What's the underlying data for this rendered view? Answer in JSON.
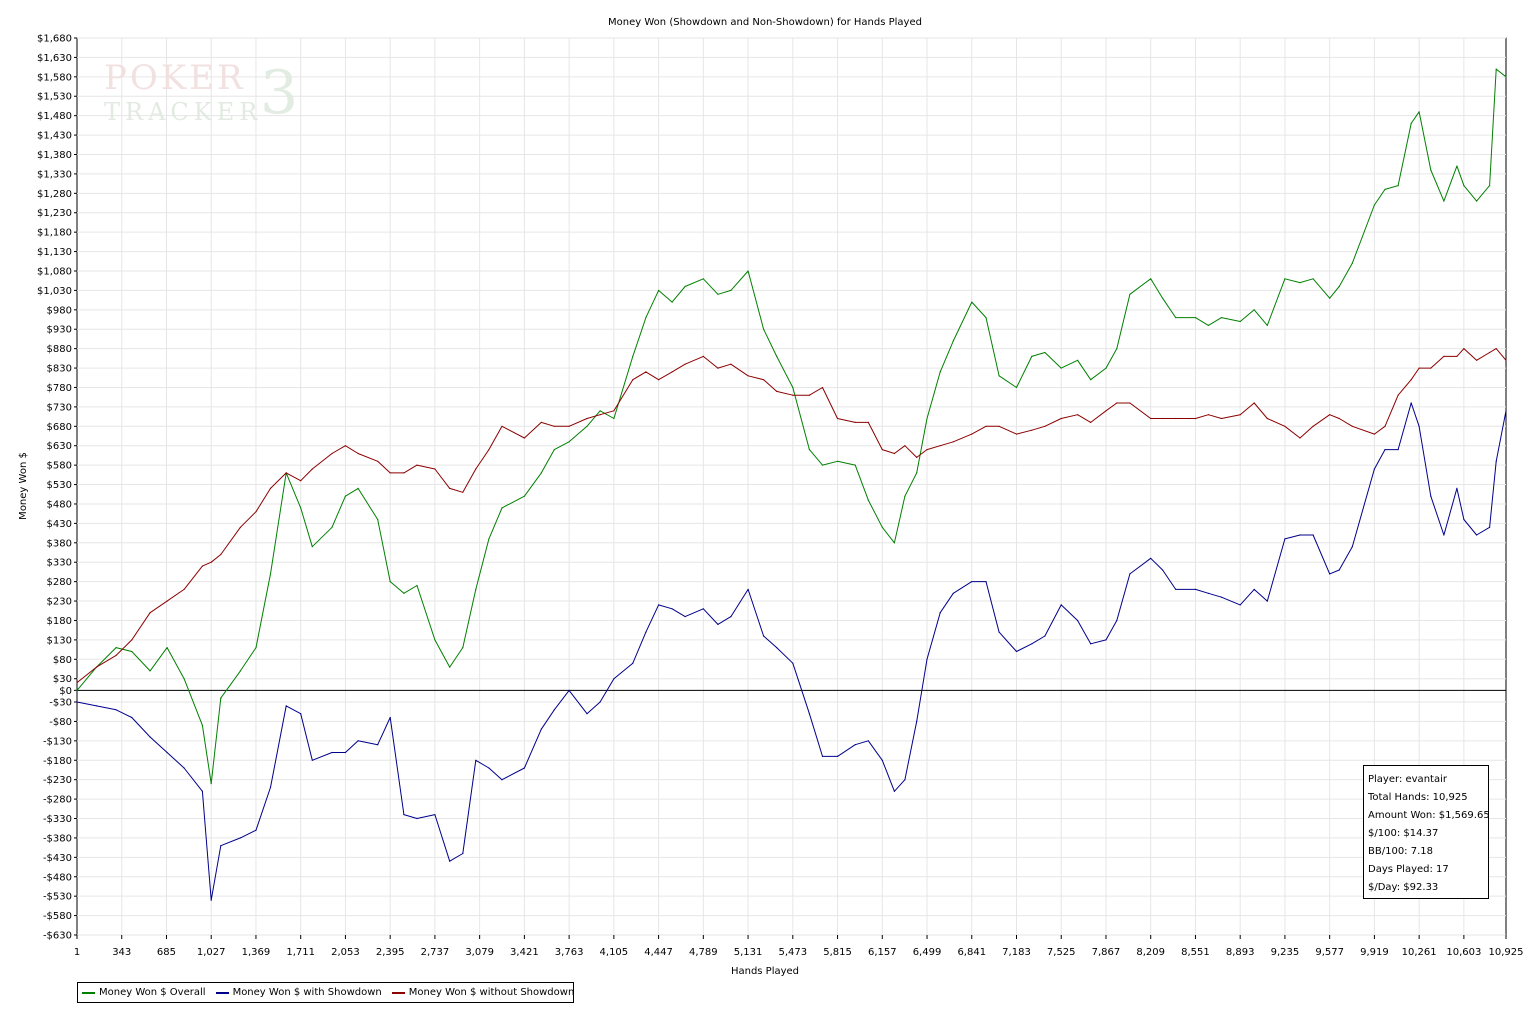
{
  "chart_data": {
    "type": "line",
    "title": "Money Won (Showdown and Non-Showdown) for Hands Played",
    "xlabel": "Hands Played",
    "ylabel": "Money Won $",
    "xlim": [
      1,
      10925
    ],
    "ylim": [
      -630,
      1680
    ],
    "x_ticks": [
      1,
      343,
      685,
      1027,
      1369,
      1711,
      2053,
      2395,
      2737,
      3079,
      3421,
      3763,
      4105,
      4447,
      4789,
      5131,
      5473,
      5815,
      6157,
      6499,
      6841,
      7183,
      7525,
      7867,
      8209,
      8551,
      8893,
      9235,
      9577,
      9919,
      10261,
      10603,
      10925
    ],
    "x_tick_labels": [
      "1",
      "343",
      "685",
      "1,027",
      "1,369",
      "1,711",
      "2,053",
      "2,395",
      "2,737",
      "3,079",
      "3,421",
      "3,763",
      "4,105",
      "4,447",
      "4,789",
      "5,131",
      "5,473",
      "5,815",
      "6,157",
      "6,499",
      "6,841",
      "7,183",
      "7,525",
      "7,867",
      "8,209",
      "8,551",
      "8,893",
      "9,235",
      "9,577",
      "9,919",
      "10,261",
      "10,603",
      "10,925"
    ],
    "y_ticks": [
      1680,
      1630,
      1580,
      1530,
      1480,
      1430,
      1380,
      1330,
      1280,
      1230,
      1180,
      1130,
      1080,
      1030,
      980,
      930,
      880,
      830,
      780,
      730,
      680,
      630,
      580,
      530,
      480,
      430,
      380,
      330,
      280,
      230,
      180,
      130,
      80,
      30,
      0,
      -30,
      -80,
      -130,
      -180,
      -230,
      -280,
      -330,
      -380,
      -430,
      -480,
      -530,
      -580,
      -630
    ],
    "y_tick_labels": [
      "$1,680",
      "$1,630",
      "$1,580",
      "$1,530",
      "$1,480",
      "$1,430",
      "$1,380",
      "$1,330",
      "$1,280",
      "$1,230",
      "$1,180",
      "$1,130",
      "$1,080",
      "$1,030",
      "$980",
      "$930",
      "$880",
      "$830",
      "$780",
      "$730",
      "$680",
      "$630",
      "$580",
      "$530",
      "$480",
      "$430",
      "$380",
      "$330",
      "$280",
      "$230",
      "$180",
      "$130",
      "$80",
      "$30",
      "$0",
      "-$30",
      "-$80",
      "-$130",
      "-$180",
      "-$230",
      "-$280",
      "-$330",
      "-$380",
      "-$430",
      "-$480",
      "-$530",
      "-$580",
      "-$630"
    ],
    "grid": true,
    "zero_line": true,
    "series": [
      {
        "name": "Money Won $ Overall",
        "color": "#008000",
        "x": [
          1,
          150,
          300,
          420,
          560,
          690,
          820,
          960,
          1027,
          1100,
          1250,
          1369,
          1480,
          1600,
          1711,
          1800,
          1950,
          2053,
          2150,
          2300,
          2395,
          2500,
          2600,
          2737,
          2850,
          2950,
          3050,
          3150,
          3250,
          3421,
          3550,
          3650,
          3763,
          3900,
          4000,
          4105,
          4250,
          4350,
          4447,
          4550,
          4650,
          4789,
          4900,
          5000,
          5131,
          5250,
          5350,
          5473,
          5600,
          5700,
          5815,
          5950,
          6050,
          6157,
          6250,
          6330,
          6420,
          6499,
          6600,
          6700,
          6841,
          6950,
          7050,
          7183,
          7300,
          7400,
          7525,
          7650,
          7750,
          7867,
          7950,
          8050,
          8209,
          8300,
          8400,
          8551,
          8650,
          8750,
          8893,
          9000,
          9100,
          9235,
          9350,
          9450,
          9577,
          9650,
          9750,
          9919,
          10000,
          10100,
          10200,
          10261,
          10350,
          10450,
          10550,
          10603,
          10700,
          10800,
          10850,
          10925
        ],
        "y": [
          0,
          60,
          110,
          100,
          50,
          110,
          30,
          -90,
          -240,
          -20,
          50,
          110,
          300,
          560,
          470,
          370,
          420,
          500,
          520,
          440,
          280,
          250,
          270,
          130,
          60,
          110,
          260,
          390,
          470,
          500,
          560,
          620,
          640,
          680,
          720,
          700,
          860,
          960,
          1030,
          1000,
          1040,
          1060,
          1020,
          1030,
          1080,
          930,
          860,
          780,
          620,
          580,
          590,
          580,
          490,
          420,
          380,
          500,
          560,
          700,
          820,
          900,
          1000,
          960,
          810,
          780,
          860,
          870,
          830,
          850,
          800,
          830,
          880,
          1020,
          1060,
          1010,
          960,
          960,
          940,
          960,
          950,
          980,
          940,
          1060,
          1050,
          1060,
          1010,
          1040,
          1100,
          1250,
          1290,
          1300,
          1460,
          1490,
          1340,
          1260,
          1350,
          1300,
          1260,
          1300,
          1600,
          1580
        ]
      },
      {
        "name": "Money Won $ with Showdown",
        "color": "#00008b",
        "x": [
          1,
          150,
          300,
          420,
          560,
          690,
          820,
          960,
          1027,
          1100,
          1250,
          1369,
          1480,
          1600,
          1711,
          1800,
          1950,
          2053,
          2150,
          2300,
          2395,
          2500,
          2600,
          2737,
          2850,
          2950,
          3050,
          3150,
          3250,
          3421,
          3550,
          3650,
          3763,
          3900,
          4000,
          4105,
          4250,
          4350,
          4447,
          4550,
          4650,
          4789,
          4900,
          5000,
          5131,
          5250,
          5350,
          5473,
          5600,
          5700,
          5815,
          5950,
          6050,
          6157,
          6250,
          6330,
          6420,
          6499,
          6600,
          6700,
          6841,
          6950,
          7050,
          7183,
          7300,
          7400,
          7525,
          7650,
          7750,
          7867,
          7950,
          8050,
          8209,
          8300,
          8400,
          8551,
          8650,
          8750,
          8893,
          9000,
          9100,
          9235,
          9350,
          9450,
          9577,
          9650,
          9750,
          9919,
          10000,
          10100,
          10200,
          10261,
          10350,
          10450,
          10550,
          10603,
          10700,
          10800,
          10850,
          10925
        ],
        "y": [
          -30,
          -40,
          -50,
          -70,
          -120,
          -160,
          -200,
          -260,
          -540,
          -400,
          -380,
          -360,
          -250,
          -40,
          -60,
          -180,
          -160,
          -160,
          -130,
          -140,
          -70,
          -320,
          -330,
          -320,
          -440,
          -420,
          -180,
          -200,
          -230,
          -200,
          -100,
          -50,
          0,
          -60,
          -30,
          30,
          70,
          150,
          220,
          210,
          190,
          210,
          170,
          190,
          260,
          140,
          110,
          70,
          -60,
          -170,
          -170,
          -140,
          -130,
          -180,
          -260,
          -230,
          -80,
          80,
          200,
          250,
          280,
          280,
          150,
          100,
          120,
          140,
          220,
          180,
          120,
          130,
          180,
          300,
          340,
          310,
          260,
          260,
          250,
          240,
          220,
          260,
          230,
          390,
          400,
          400,
          300,
          310,
          370,
          570,
          620,
          620,
          740,
          680,
          500,
          400,
          520,
          440,
          400,
          420,
          590,
          720
        ]
      },
      {
        "name": "Money Won $ without Showdown",
        "color": "#8b0000",
        "x": [
          1,
          150,
          300,
          420,
          560,
          690,
          820,
          960,
          1027,
          1100,
          1250,
          1369,
          1480,
          1600,
          1711,
          1800,
          1950,
          2053,
          2150,
          2300,
          2395,
          2500,
          2600,
          2737,
          2850,
          2950,
          3050,
          3150,
          3250,
          3421,
          3550,
          3650,
          3763,
          3900,
          4000,
          4105,
          4250,
          4350,
          4447,
          4550,
          4650,
          4789,
          4900,
          5000,
          5131,
          5250,
          5350,
          5473,
          5600,
          5700,
          5815,
          5950,
          6050,
          6157,
          6250,
          6330,
          6420,
          6499,
          6600,
          6700,
          6841,
          6950,
          7050,
          7183,
          7300,
          7400,
          7525,
          7650,
          7750,
          7867,
          7950,
          8050,
          8209,
          8300,
          8400,
          8551,
          8650,
          8750,
          8893,
          9000,
          9100,
          9235,
          9350,
          9450,
          9577,
          9650,
          9750,
          9919,
          10000,
          10100,
          10200,
          10261,
          10350,
          10450,
          10550,
          10603,
          10700,
          10800,
          10850,
          10925
        ],
        "y": [
          20,
          60,
          90,
          130,
          200,
          230,
          260,
          320,
          330,
          350,
          420,
          460,
          520,
          560,
          540,
          570,
          610,
          630,
          610,
          590,
          560,
          560,
          580,
          570,
          520,
          510,
          570,
          620,
          680,
          650,
          690,
          680,
          680,
          700,
          710,
          720,
          800,
          820,
          800,
          820,
          840,
          860,
          830,
          840,
          810,
          800,
          770,
          760,
          760,
          780,
          700,
          690,
          690,
          620,
          610,
          630,
          600,
          620,
          630,
          640,
          660,
          680,
          680,
          660,
          670,
          680,
          700,
          710,
          690,
          720,
          740,
          740,
          700,
          700,
          700,
          700,
          710,
          700,
          710,
          740,
          700,
          680,
          650,
          680,
          710,
          700,
          680,
          660,
          680,
          760,
          800,
          830,
          830,
          860,
          860,
          880,
          850,
          870,
          880,
          850
        ]
      }
    ]
  },
  "stats": {
    "player": "Player: evantair",
    "total_hands": "Total Hands: 10,925",
    "amount_won": "Amount Won: $1,569.65",
    "per_100": "$/100: $14.37",
    "bb_per_100": "BB/100: 7.18",
    "days_played": "Days Played: 17",
    "per_day": "$/Day: $92.33"
  },
  "watermark": {
    "line1": "POKER",
    "line2": "TRACKER",
    "number": "3"
  }
}
